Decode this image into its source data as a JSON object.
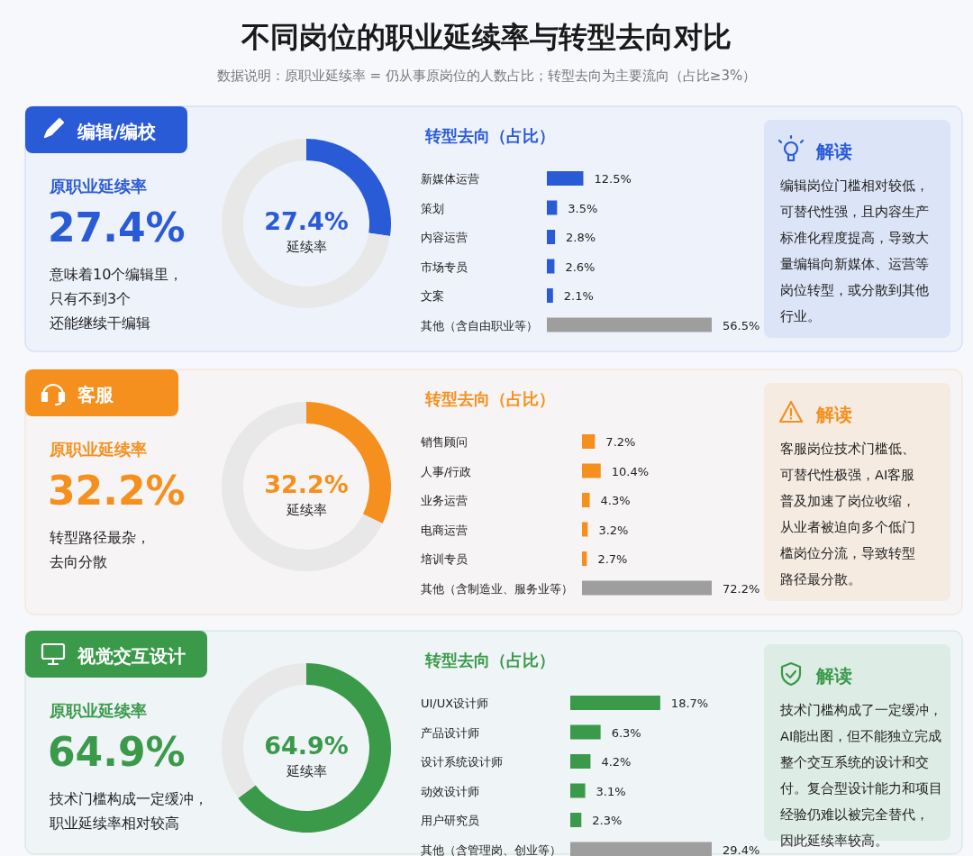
{
  "chart_data": [
    {
      "type": "other",
      "title": "不同岗位的职业延续率与转型去向对比",
      "subtitle": "数据说明：原职业延续率 = 仍从事原岗位的人数占比；转型去向为主要流向（占比≥3%）"
    },
    {
      "type": "other",
      "title": "编辑/编校",
      "color": "#2a5bd7",
      "annotations": [
        "原职业延续率",
        "27.4%",
        "意味着10个编辑里，",
        "只有不到3个",
        "还能继续干编辑"
      ]
    },
    {
      "type": "donut",
      "categories": [
        null,
        null
      ],
      "values": [
        27.4,
        72.6
      ],
      "colors": [
        "#2a5bd7",
        "#e8e8e8"
      ],
      "annotations": [
        "27.4%",
        "延续率"
      ]
    },
    {
      "type": "bar",
      "orientation": "horizontal",
      "title": "转型去向（占比）",
      "categories": [
        "新媒体运营",
        "策划",
        "内容运营",
        "市场专员",
        "文案",
        "其他（含自由职业等）"
      ],
      "values": [
        12.5,
        3.5,
        2.8,
        2.6,
        2.1,
        56.5
      ],
      "colors": [
        "#2a5bd7",
        "#2a5bd7",
        "#2a5bd7",
        "#2a5bd7",
        "#2a5bd7",
        "#9e9e9e"
      ],
      "value_labels": [
        "12.5%",
        "3.5%",
        "2.8%",
        "2.6%",
        "2.1%",
        "56.5%"
      ]
    },
    {
      "type": "other",
      "title": "解读",
      "color": "#2a5bd7",
      "annotations": [
        "编辑岗位门槛相对较低，",
        "可替代性强，且内容生产",
        "标准化程度提高，导致大",
        "量编辑向新媒体、运营等",
        "岗位转型，或分散到其他",
        "行业。"
      ]
    },
    {
      "type": "other",
      "title": "客服",
      "color": "#f5901e",
      "annotations": [
        "原职业延续率",
        "32.2%",
        "转型路径最杂，",
        "去向分散"
      ]
    },
    {
      "type": "donut",
      "categories": [
        null,
        null
      ],
      "values": [
        32.2,
        67.8
      ],
      "colors": [
        "#f5901e",
        "#e8e8e8"
      ],
      "annotations": [
        "32.2%",
        "延续率"
      ]
    },
    {
      "type": "bar",
      "orientation": "horizontal",
      "title": "转型去向（占比）",
      "categories": [
        "销售顾问",
        "人事/行政",
        "业务运营",
        "电商运营",
        "培训专员",
        "其他（含制造业、服务业等）"
      ],
      "values": [
        7.2,
        10.4,
        4.3,
        3.2,
        2.7,
        72.2
      ],
      "colors": [
        "#f5901e",
        "#f5901e",
        "#f5901e",
        "#f5901e",
        "#f5901e",
        "#9e9e9e"
      ],
      "value_labels": [
        "7.2%",
        "10.4%",
        "4.3%",
        "3.2%",
        "2.7%",
        "72.2%"
      ]
    },
    {
      "type": "other",
      "title": "解读",
      "color": "#f5901e",
      "annotations": [
        "客服岗位技术门槛低、",
        "可替代性极强，AI客服",
        "普及加速了岗位收缩，",
        "从业者被迫向多个低门",
        "槛岗位分流，导致转型",
        "路径最分散。"
      ]
    },
    {
      "type": "other",
      "title": "视觉交互设计",
      "color": "#3a9a4a",
      "annotations": [
        "原职业延续率",
        "64.9%",
        "技术门槛构成一定缓冲，",
        "职业延续率相对较高"
      ]
    },
    {
      "type": "donut",
      "categories": [
        null,
        null
      ],
      "values": [
        64.9,
        35.1
      ],
      "colors": [
        "#3a9a4a",
        "#e8e8e8"
      ],
      "annotations": [
        "64.9%",
        "延续率"
      ]
    },
    {
      "type": "bar",
      "orientation": "horizontal",
      "title": "转型去向（占比）",
      "categories": [
        "UI/UX设计师",
        "产品设计师",
        "设计系统设计师",
        "动效设计师",
        "用户研究员",
        "其他（含管理岗、创业等）"
      ],
      "values": [
        18.7,
        6.3,
        4.2,
        3.1,
        2.3,
        29.4
      ],
      "colors": [
        "#3a9a4a",
        "#3a9a4a",
        "#3a9a4a",
        "#3a9a4a",
        "#3a9a4a",
        "#9e9e9e"
      ],
      "value_labels": [
        "18.7%",
        "6.3%",
        "4.2%",
        "3.1%",
        "2.3%",
        "29.4%"
      ]
    },
    {
      "type": "other",
      "title": "解读",
      "color": "#3a9a4a",
      "annotations": [
        "技术门槛构成了一定缓冲，",
        "AI能出图，但不能独立完成",
        "整个交互系统的设计和交",
        "付。复合型设计能力和项目",
        "经验仍难以被完全替代，",
        "因此延续率较高。"
      ]
    }
  ]
}
